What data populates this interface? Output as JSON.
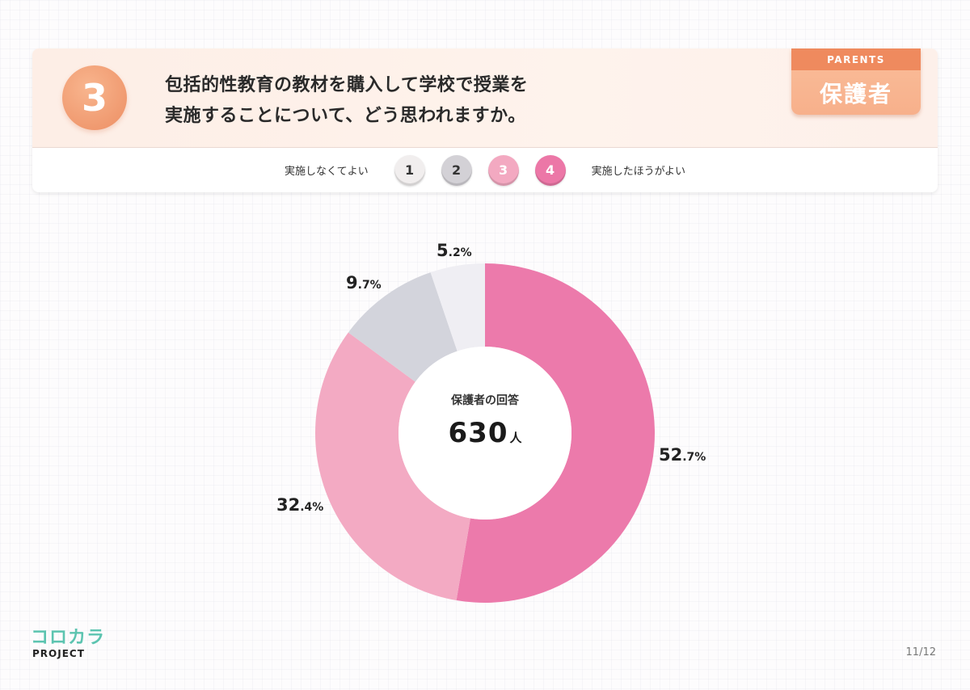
{
  "header": {
    "question_number": "3",
    "question_line1": "包括的性教育の教材を購入して学校で授業を",
    "question_line2": "実施することについて、どう思われますか。",
    "badge_top": "PARENTS",
    "badge_bottom": "保護者"
  },
  "scale": {
    "left_label": "実施しなくてよい",
    "right_label": "実施したほうがよい",
    "options": [
      {
        "label": "1",
        "bg": "#f1eeee",
        "fg": "#333333"
      },
      {
        "label": "2",
        "bg": "#d3d1d6",
        "fg": "#333333"
      },
      {
        "label": "3",
        "bg": "#f3a9c1",
        "fg": "#ffffff"
      },
      {
        "label": "4",
        "bg": "#ec77a7",
        "fg": "#ffffff"
      }
    ]
  },
  "chart_data": {
    "type": "pie",
    "subtype": "donut",
    "title": "包括的性教育の教材を購入して学校で授業を実施することについて、どう思われますか。",
    "center_label": "保護者の回答",
    "center_value": "630",
    "center_unit": "人",
    "categories": [
      "4 実施したほうがよい",
      "3",
      "2",
      "1 実施しなくてよい"
    ],
    "values": [
      52.7,
      32.4,
      9.7,
      5.2
    ],
    "colors": [
      "#ec7aab",
      "#f3aac3",
      "#d3d4dc",
      "#efeef3"
    ],
    "labels": [
      {
        "int": "52",
        "dec": ".7%"
      },
      {
        "int": "32",
        "dec": ".4%"
      },
      {
        "int": "9",
        "dec": ".7%"
      },
      {
        "int": "5",
        "dec": ".2%"
      }
    ],
    "start_angle": "top, clockwise"
  },
  "footer": {
    "logo_top": "コロカラ",
    "logo_bottom": "PROJECT",
    "page": "11/12"
  }
}
